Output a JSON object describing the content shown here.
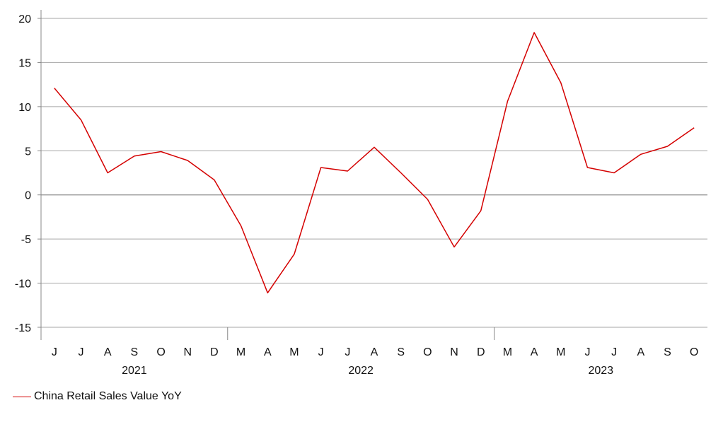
{
  "chart_data": {
    "type": "line",
    "title": "",
    "xlabel": "",
    "ylabel": "",
    "ylim": [
      -15,
      20
    ],
    "yticks": [
      -15,
      -10,
      -5,
      0,
      5,
      10,
      15,
      20
    ],
    "grid": "horizontal",
    "legend_position": "bottom-left",
    "categories": [
      "J",
      "J",
      "A",
      "S",
      "O",
      "N",
      "D",
      "M",
      "A",
      "M",
      "J",
      "J",
      "A",
      "S",
      "O",
      "N",
      "D",
      "M",
      "A",
      "M",
      "J",
      "J",
      "A",
      "S",
      "O"
    ],
    "year_groups": [
      {
        "label": "2021",
        "start": 0,
        "end": 6
      },
      {
        "label": "2022",
        "start": 7,
        "end": 16
      },
      {
        "label": "2023",
        "start": 17,
        "end": 24
      }
    ],
    "series": [
      {
        "name": "China Retail Sales Value YoY",
        "color": "#d40000",
        "values": [
          12.1,
          8.5,
          2.5,
          4.4,
          4.9,
          3.9,
          1.7,
          -3.5,
          -11.1,
          -6.7,
          3.1,
          2.7,
          5.4,
          2.5,
          -0.5,
          -5.9,
          -1.8,
          10.6,
          18.4,
          12.7,
          3.1,
          2.5,
          4.6,
          5.5,
          7.6
        ]
      }
    ]
  }
}
